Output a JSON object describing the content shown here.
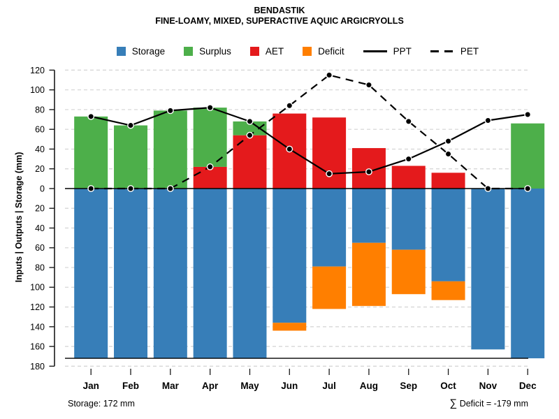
{
  "chart_data": {
    "type": "bar+line",
    "title": "BENDASTIK",
    "subtitle": "FINE-LOAMY, MIXED, SUPERACTIVE AQUIC ARGICRYOLLS",
    "ylabel": "Inputs | Outputs | Storage  (mm)",
    "categories": [
      "Jan",
      "Feb",
      "Mar",
      "Apr",
      "May",
      "Jun",
      "Jul",
      "Aug",
      "Sep",
      "Oct",
      "Nov",
      "Dec"
    ],
    "ylim": [
      -180,
      120
    ],
    "ytick_values": [
      120,
      100,
      80,
      60,
      40,
      20,
      0,
      -20,
      -40,
      -60,
      -80,
      -100,
      -120,
      -140,
      -160,
      -180
    ],
    "ytick_labels": [
      "120",
      "100",
      "80",
      "60",
      "40",
      "20",
      "0",
      "20",
      "40",
      "60",
      "80",
      "100",
      "120",
      "140",
      "160",
      "180"
    ],
    "grid": "dashed-horizontal",
    "zero_line": true,
    "capacity_line": -172,
    "series": [
      {
        "name": "Storage",
        "role": "bar-down",
        "color": "#377EB8",
        "values": [
          172,
          172,
          172,
          172,
          172,
          136,
          79,
          55,
          62,
          94,
          163,
          172
        ]
      },
      {
        "name": "Surplus",
        "role": "bar-up-stacked-on-AET",
        "color": "#4DAF4A",
        "values": [
          73,
          64,
          79,
          60,
          14,
          0,
          0,
          0,
          0,
          0,
          0,
          66
        ]
      },
      {
        "name": "AET",
        "role": "bar-up",
        "color": "#E41A1C",
        "values": [
          0,
          0,
          0,
          22,
          54,
          76,
          72,
          41,
          23,
          16,
          0,
          0
        ]
      },
      {
        "name": "Deficit",
        "role": "bar-down-stacked-on-Storage",
        "color": "#FF7F00",
        "values": [
          0,
          0,
          0,
          0,
          0,
          8,
          43,
          64,
          45,
          19,
          0,
          0
        ]
      },
      {
        "name": "PPT",
        "role": "line-solid",
        "color": "#000000",
        "values": [
          73,
          64,
          79,
          82,
          68,
          40,
          15,
          17,
          30,
          48,
          69,
          75
        ]
      },
      {
        "name": "PET",
        "role": "line-dashed",
        "color": "#000000",
        "values": [
          0,
          0,
          0,
          22,
          54,
          84,
          115,
          105,
          68,
          35,
          0,
          0
        ]
      }
    ],
    "legend": [
      {
        "label": "Storage",
        "type": "box",
        "color": "#377EB8"
      },
      {
        "label": "Surplus",
        "type": "box",
        "color": "#4DAF4A"
      },
      {
        "label": "AET",
        "type": "box",
        "color": "#E41A1C"
      },
      {
        "label": "Deficit",
        "type": "box",
        "color": "#FF7F00"
      },
      {
        "label": "PPT",
        "type": "line-solid",
        "color": "#000000"
      },
      {
        "label": "PET",
        "type": "line-dashed",
        "color": "#000000"
      }
    ],
    "legend_position": "top-center",
    "annotations": {
      "storage": "Storage: 172 mm",
      "deficit_sigma": "∑",
      "deficit_sum": " Deficit = -179 mm"
    },
    "colors": {
      "grid": "#D3D3D3",
      "axis": "#1a1a1a",
      "marker_fill": "#000000",
      "marker_ring": "#FFFFFF"
    }
  }
}
